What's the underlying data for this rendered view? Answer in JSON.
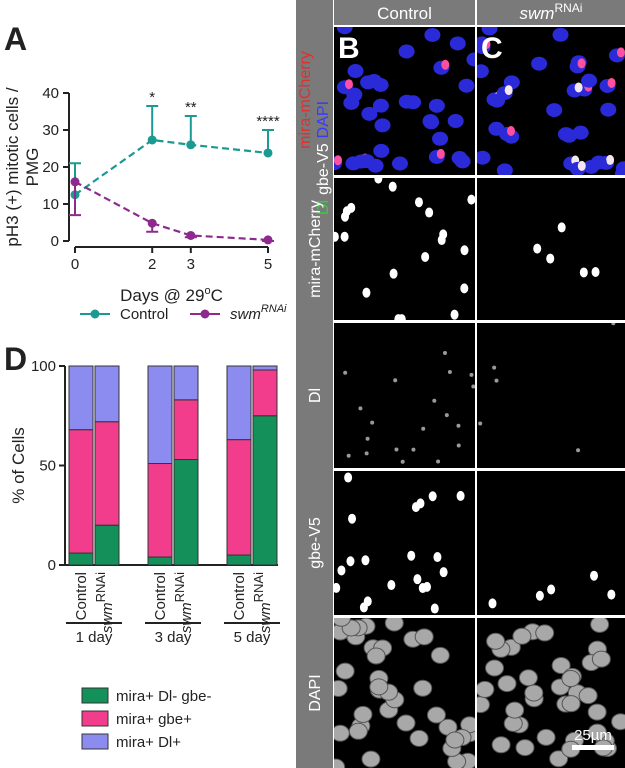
{
  "chart_data": [
    {
      "type": "line",
      "panel_label": "A",
      "y_label": [
        "pH3 (+) mitotic cells /",
        "PMG"
      ],
      "x_label": {
        "before": "Days @ 29",
        "sup": "o",
        "after": "C"
      },
      "x": [
        0,
        2,
        3,
        5
      ],
      "xlim": [
        0,
        5
      ],
      "xticks": [
        0,
        2,
        3,
        5
      ],
      "ylim": [
        0,
        40
      ],
      "yticks": [
        0,
        10,
        20,
        30,
        40
      ],
      "series": [
        {
          "name": "Control",
          "color": "#1a9a93",
          "values": [
            12.5,
            27.3,
            26,
            23.8
          ],
          "errors": [
            8.5,
            9.2,
            7.8,
            6.2
          ],
          "error_direction": "up"
        },
        {
          "name": "swm",
          "name_sup": "RNAi",
          "color": "#8e2a8e",
          "values": [
            16,
            4.8,
            1.5,
            0.3
          ],
          "errors": [
            9,
            2.3,
            0.5,
            0.3
          ],
          "error_direction": "down"
        }
      ],
      "annotations": [
        {
          "x": 2,
          "text": "*"
        },
        {
          "x": 3,
          "text": "**"
        },
        {
          "x": 5,
          "text": "****"
        }
      ]
    },
    {
      "type": "stacked_bar",
      "panel_label": "D",
      "y_label": "% of Cells",
      "categories": [
        "Control",
        "swm",
        "Control",
        "swm",
        "Control",
        "swm"
      ],
      "category_sups": [
        null,
        "RNAi",
        null,
        "RNAi",
        null,
        "RNAi"
      ],
      "groups": [
        "1 day",
        "3 day",
        "5 day"
      ],
      "ylim": [
        0,
        100
      ],
      "yticks": [
        0,
        50,
        100
      ],
      "series": [
        {
          "name": "mira+ Dl- gbe-",
          "color": "#14905a",
          "values": [
            6,
            20,
            4,
            53,
            5,
            75
          ]
        },
        {
          "name": "mira+ gbe+",
          "color": "#f23c8c",
          "values": [
            62,
            52,
            47,
            30,
            58,
            23
          ]
        },
        {
          "name": "mira+ Dl+",
          "color": "#8c8cf0",
          "values": [
            32,
            28,
            49,
            17,
            37,
            2
          ]
        }
      ]
    }
  ],
  "microscopy": {
    "panel_labels": [
      "B",
      "C"
    ],
    "columns": [
      {
        "text": "Control"
      },
      {
        "text": "swm",
        "sup": "RNAi"
      }
    ],
    "merge_label": {
      "line1": "mira-mCherry",
      "line2": [
        "Dl",
        "gbe-V5",
        "DAPI"
      ]
    },
    "row_labels": [
      "mira-mCherry",
      "Dl",
      "gbe-V5",
      "DAPI"
    ],
    "scale_bar": "25µm"
  }
}
